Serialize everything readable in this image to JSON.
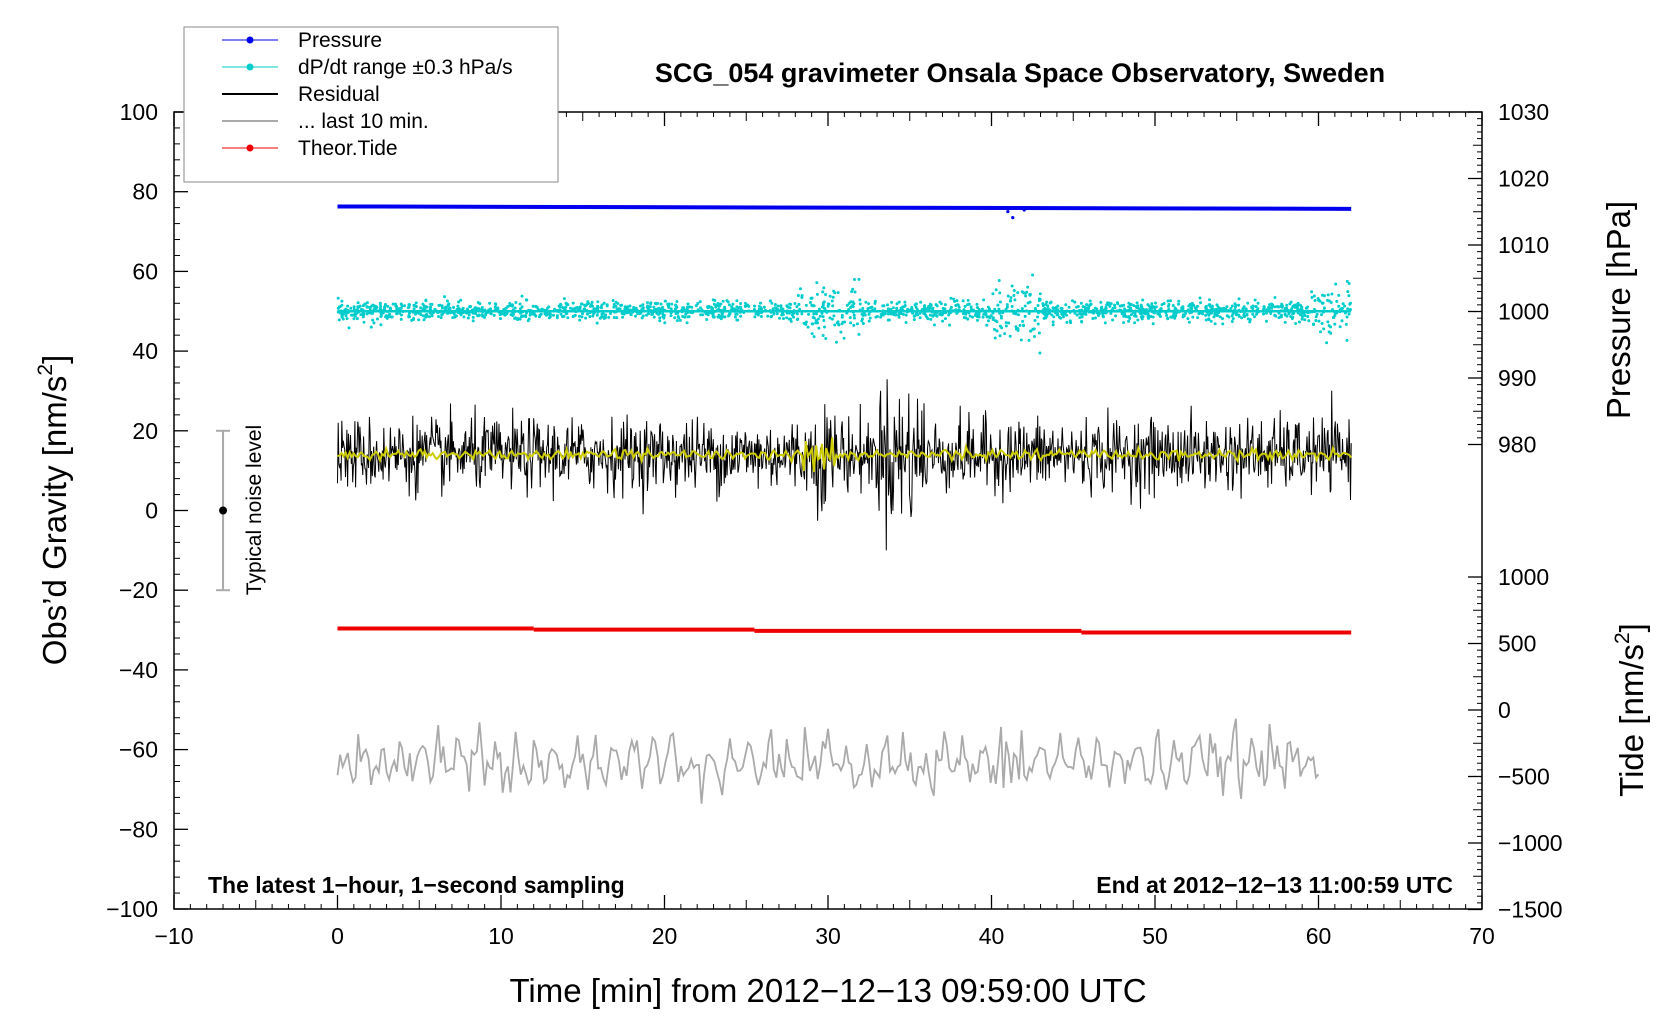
{
  "chart_data": {
    "type": "line",
    "title": "SCG_054 gravimeter Onsala Space Observatory, Sweden",
    "xlabel": "Time [min] from 2012−12−13 09:59:00 UTC",
    "ylabel_left": "Obs’d Gravity [nm/s",
    "ylabel_left_sup": "2",
    "ylabel_left_end": "]",
    "ylabel_right_pressure": "Pressure [hPa]",
    "ylabel_right_tide": "Tide [nm/s",
    "ylabel_right_tide_sup": "2",
    "ylabel_right_tide_end": "]",
    "xlim": [
      -10,
      70
    ],
    "ylim_left": [
      -100,
      100
    ],
    "x_ticks": [
      "−10",
      "0",
      "10",
      "20",
      "30",
      "40",
      "50",
      "60",
      "70"
    ],
    "y_ticks_left": [
      "100",
      "80",
      "60",
      "40",
      "20",
      "0",
      "−20",
      "−40",
      "−60",
      "−80",
      "−100"
    ],
    "pressure_ticks": [
      "1030",
      "1020",
      "1010",
      "1000",
      "990",
      "980"
    ],
    "tide_ticks": [
      "1000",
      "500",
      "0",
      "−500",
      "−1000",
      "−1500"
    ],
    "annotation_left": "The latest 1−hour, 1−second sampling",
    "annotation_right": "End at 2012−12−13 11:00:59 UTC",
    "noise_label": "Typical noise level",
    "noise_bar": {
      "center": 0,
      "half_range": 20,
      "x": -7
    },
    "legend": [
      {
        "label": "Pressure",
        "color": "#0000ee",
        "style": "line-dot"
      },
      {
        "label": "dP/dt range ±0.3 hPa/s",
        "color": "#00cccc",
        "style": "line-dot"
      },
      {
        "label": "Residual",
        "color": "#000000",
        "style": "line"
      },
      {
        "label": "... last 10 min.",
        "color": "#aaaaaa",
        "style": "line"
      },
      {
        "label": "Theor.Tide",
        "color": "#ee0000",
        "style": "line-dot"
      }
    ],
    "series": [
      {
        "name": "Pressure",
        "color": "#0000ee",
        "x_range": [
          0,
          62
        ],
        "start": 76.3,
        "end": 75.7,
        "unit_axis": "left-plot-units"
      },
      {
        "name": "dP/dt range ±0.3 hPa/s",
        "color": "#00cccc",
        "x_range": [
          0,
          62
        ],
        "center": 50,
        "spread": 3,
        "outlier_max": 63,
        "outlier_min": 37
      },
      {
        "name": "Residual",
        "color": "#000000",
        "x_range": [
          0,
          62
        ],
        "center": 14,
        "amplitude": 8,
        "max": 35,
        "min": -10,
        "burst_at": 34
      },
      {
        "name": "Residual 1-min mean",
        "color": "#cccc00",
        "x_range": [
          0,
          62
        ],
        "center": 14,
        "amplitude": 1.5
      },
      {
        "name": "Theor.Tide",
        "color": "#ee0000",
        "x_range": [
          0,
          62
        ],
        "start": -29.6,
        "end": -30.6
      },
      {
        "name": "... last 10 min.",
        "color": "#aaaaaa",
        "x_range": [
          0,
          60
        ],
        "center": -63,
        "amplitude": 7,
        "max": -50,
        "min": -75
      }
    ]
  }
}
